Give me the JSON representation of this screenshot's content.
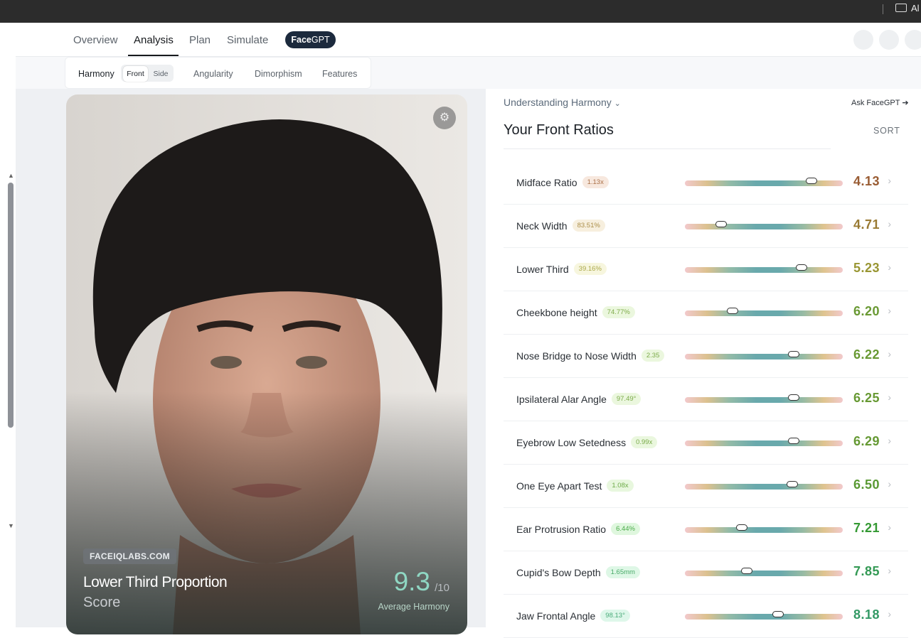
{
  "topbar": {
    "folder_label": "Al"
  },
  "nav": {
    "items": [
      "Overview",
      "Analysis",
      "Plan",
      "Simulate"
    ],
    "active": 1,
    "gpt_prefix": "Face",
    "gpt_suffix": "GPT"
  },
  "subnav": {
    "harmony": "Harmony",
    "front": "Front",
    "side": "Side",
    "items": [
      "Angularity",
      "Dimorphism",
      "Features"
    ]
  },
  "card": {
    "site": "FACEIQLABS.COM",
    "title": "Lower Third Proportion",
    "subtitle": "Score",
    "score": "9.3",
    "out_of": "/10",
    "score_label": "Average Harmony"
  },
  "panel": {
    "understanding": "Understanding Harmony",
    "ask": "Ask FaceGPT",
    "title": "Your Front Ratios",
    "sort": "SORT",
    "rows": [
      {
        "name": "Midface Ratio",
        "badge": "1.13x",
        "position": 80,
        "score": "4.13"
      },
      {
        "name": "Neck Width",
        "badge": "83.51%",
        "position": 23,
        "score": "4.71"
      },
      {
        "name": "Lower Third",
        "badge": "39.16%",
        "position": 74,
        "score": "5.23"
      },
      {
        "name": "Cheekbone height",
        "badge": "74.77%",
        "position": 30,
        "score": "6.20"
      },
      {
        "name": "Nose Bridge to Nose Width",
        "badge": "2.35",
        "position": 69,
        "score": "6.22"
      },
      {
        "name": "Ipsilateral Alar Angle",
        "badge": "97.49°",
        "position": 69,
        "score": "6.25"
      },
      {
        "name": "Eyebrow Low Setedness",
        "badge": "0.99x",
        "position": 69,
        "score": "6.29"
      },
      {
        "name": "One Eye Apart Test",
        "badge": "1.08x",
        "position": 68,
        "score": "6.50"
      },
      {
        "name": "Ear Protrusion Ratio",
        "badge": "6.44%",
        "position": 36,
        "score": "7.21"
      },
      {
        "name": "Cupid's Bow Depth",
        "badge": "1.65mm",
        "position": 39,
        "score": "7.85"
      },
      {
        "name": "Jaw Frontal Angle",
        "badge": "98.13°",
        "position": 59,
        "score": "8.18"
      }
    ]
  }
}
